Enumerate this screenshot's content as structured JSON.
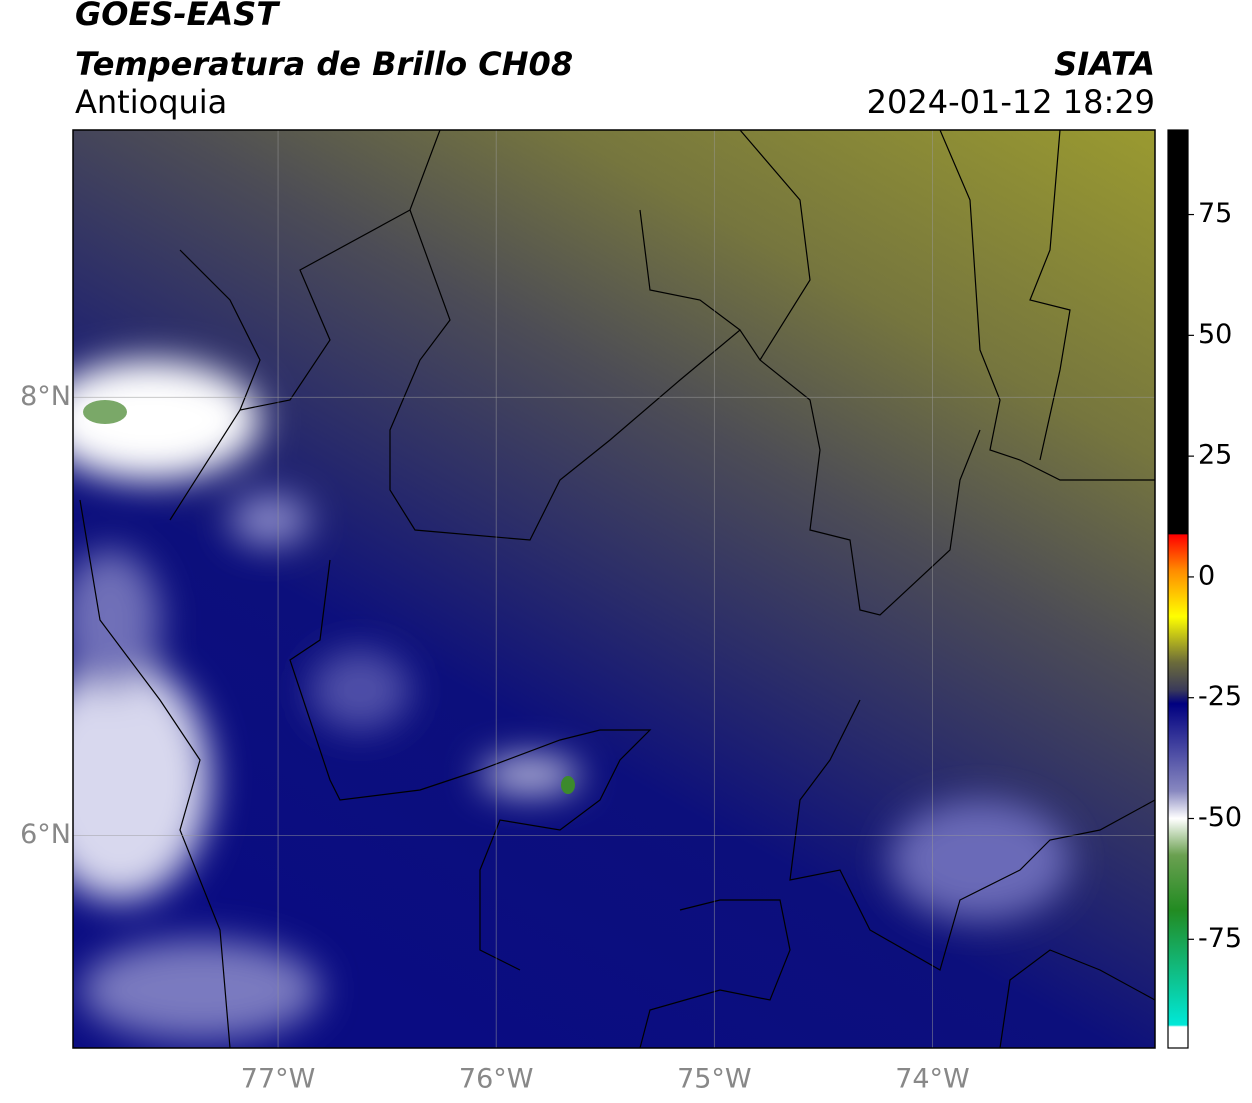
{
  "header": {
    "satellite": "GOES-EAST",
    "product": "Temperatura de Brillo CH08",
    "region": "Antioquia",
    "source": "SIATA",
    "timestamp": "2024-01-12 18:29"
  },
  "map": {
    "lonlim": [
      -77.94,
      -72.98
    ],
    "latlim": [
      5.03,
      9.22
    ],
    "lon_ticks": [
      {
        "value": -77,
        "label": "77°W"
      },
      {
        "value": -76,
        "label": "76°W"
      },
      {
        "value": -75,
        "label": "75°W"
      },
      {
        "value": -74,
        "label": "74°W"
      }
    ],
    "lat_ticks": [
      {
        "value": 8,
        "label": "8°N"
      },
      {
        "value": 6,
        "label": "6°N"
      }
    ]
  },
  "colorbar": {
    "lim": [
      -97.5,
      92.5
    ],
    "ticks": [
      -75,
      -50,
      -25,
      0,
      25,
      50,
      75
    ]
  }
}
